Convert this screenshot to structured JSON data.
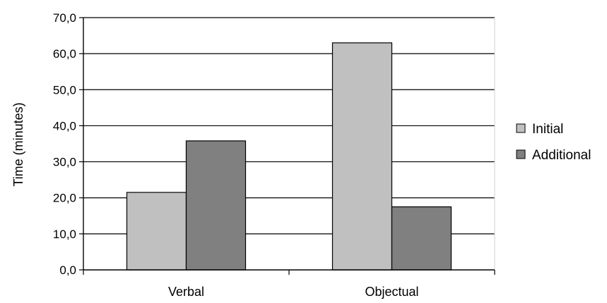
{
  "chart_data": {
    "type": "bar",
    "ylabel": "Time (minutes)",
    "ylim": [
      0,
      70
    ],
    "yticks": [
      0,
      10,
      20,
      30,
      40,
      50,
      60,
      70
    ],
    "ytick_labels": [
      "0,0",
      "10,0",
      "20,0",
      "30,0",
      "40,0",
      "50,0",
      "60,0",
      "70,0"
    ],
    "grid": true,
    "legend_position": "right",
    "categories": [
      "Verbal",
      "Objectual"
    ],
    "series": [
      {
        "name": "Initial",
        "values": [
          21.5,
          63.0
        ],
        "color": "#c0c0c0"
      },
      {
        "name": "Additional",
        "values": [
          35.8,
          17.5
        ],
        "color": "#808080"
      }
    ]
  }
}
